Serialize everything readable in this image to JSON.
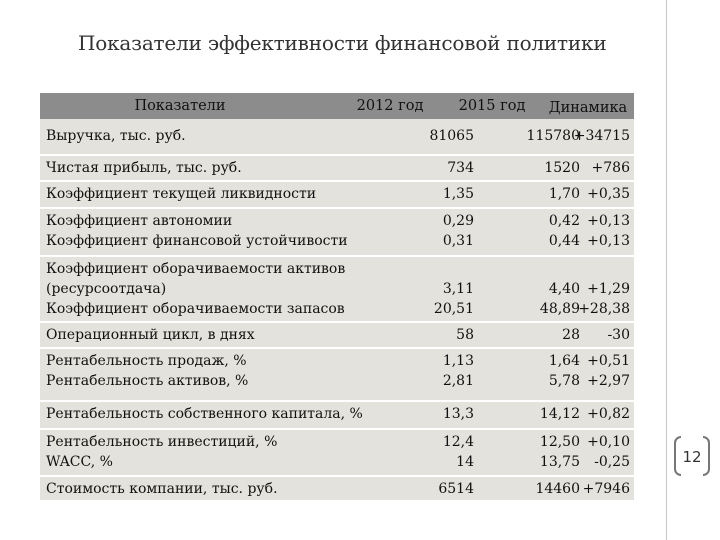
{
  "title": "Показатели эффективности финансовой политики",
  "table": {
    "headers": [
      "Показатели",
      "2012 год",
      "2015 год",
      "Динамика"
    ],
    "groups": [
      {
        "rows": [
          [
            "Выручка, тыс. руб.",
            "81065",
            "115780",
            "+34715"
          ]
        ]
      },
      {
        "rows": [
          [
            "Чистая прибыль, тыс. руб.",
            "734",
            "1520",
            "+786"
          ]
        ]
      },
      {
        "rows": [
          [
            "Коэффициент текущей ликвидности",
            "1,35",
            "1,70",
            "+0,35"
          ]
        ]
      },
      {
        "rows": [
          [
            "Коэффициент автономии",
            "0,29",
            "0,42",
            "+0,13"
          ],
          [
            "Коэффициент финансовой устойчивости",
            "0,31",
            "0,44",
            "+0,13"
          ]
        ]
      },
      {
        "rows": [
          [
            "Коэффициент оборачиваемости активов",
            "",
            "",
            ""
          ],
          [
            "(ресурсоотдача)",
            "3,11",
            "4,40",
            "+1,29"
          ],
          [
            "Коэффициент оборачиваемости запасов",
            "20,51",
            "48,89",
            "+28,38"
          ]
        ]
      },
      {
        "rows": [
          [
            "Операционный цикл, в днях",
            "58",
            "28",
            "-30"
          ]
        ]
      },
      {
        "rows": [
          [
            "Рентабельность продаж, %",
            "1,13",
            "1,64",
            "+0,51"
          ],
          [
            "Рентабельность активов, %",
            "2,81",
            "5,78",
            "+2,97"
          ]
        ]
      },
      {
        "rows": [
          [
            "Рентабельность собственного капитала, %",
            "13,3",
            "14,12",
            "+0,82"
          ]
        ]
      },
      {
        "rows": [
          [
            "Рентабельность инвестиций, %",
            "12,4",
            "12,50",
            "+0,10"
          ],
          [
            "WACC, %",
            "14",
            "13,75",
            "-0,25"
          ]
        ]
      },
      {
        "rows": [
          [
            "Стоимость компании, тыс. руб.",
            "6514",
            "14460",
            "+7946"
          ]
        ]
      }
    ]
  },
  "page_number": "12"
}
